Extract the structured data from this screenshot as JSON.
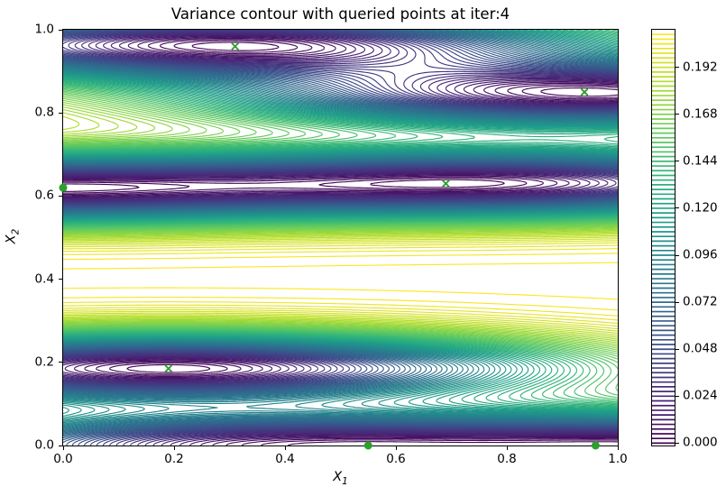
{
  "title": "Variance contour with queried points at iter:4",
  "axes": {
    "xlabel": {
      "base": "X",
      "sub": "1"
    },
    "ylabel": {
      "base": "X",
      "sub": "2"
    },
    "x_tick_labels": [
      "0.0",
      "0.2",
      "0.4",
      "0.6",
      "0.8",
      "1.0"
    ],
    "y_tick_labels": [
      "0.0",
      "0.2",
      "0.4",
      "0.6",
      "0.8",
      "1.0"
    ],
    "xlim": [
      0.0,
      1.0
    ],
    "ylim": [
      0.0,
      1.0
    ]
  },
  "colorbar": {
    "tick_labels": [
      "0.000",
      "0.024",
      "0.048",
      "0.072",
      "0.096",
      "0.120",
      "0.144",
      "0.168",
      "0.192"
    ],
    "tick_values": [
      0.0,
      0.024,
      0.048,
      0.072,
      0.096,
      0.12,
      0.144,
      0.168,
      0.192
    ],
    "vmin": 0.0,
    "vmax": 0.21
  },
  "chart_data": {
    "type": "contour",
    "title": "Variance contour with queried points at iter:4",
    "xlabel": "X_1",
    "ylabel": "X_2",
    "xlim": [
      0.0,
      1.0
    ],
    "ylim": [
      0.0,
      1.0
    ],
    "grid": false,
    "colormap": "viridis",
    "levels": {
      "start": 0.0,
      "step": 0.0024,
      "count": 88
    },
    "x_ticks": [
      0.0,
      0.2,
      0.4,
      0.6,
      0.8,
      1.0
    ],
    "y_ticks": [
      0.0,
      0.2,
      0.4,
      0.6,
      0.8,
      1.0
    ],
    "colorbar_ticks": [
      0.0,
      0.024,
      0.048,
      0.072,
      0.096,
      0.12,
      0.144,
      0.168,
      0.192
    ],
    "marker_color": "#2ca02c",
    "queried_points": {
      "crosses": [
        [
          0.31,
          0.96
        ],
        [
          0.94,
          0.85
        ],
        [
          0.69,
          0.63
        ],
        [
          0.19,
          0.185
        ]
      ],
      "dots": [
        [
          0.0,
          0.62
        ],
        [
          0.55,
          0.0
        ],
        [
          0.96,
          0.0
        ]
      ]
    },
    "variance_model": {
      "kind": "gp_posterior_variance",
      "kernel": "anisotropic_rbf",
      "signal_variance": 0.21,
      "lengthscales": [
        0.7,
        0.085
      ],
      "train_points": [
        [
          0.31,
          0.96
        ],
        [
          0.94,
          0.85
        ],
        [
          0.69,
          0.63
        ],
        [
          0.19,
          0.185
        ],
        [
          0.0,
          0.62
        ],
        [
          0.55,
          0.0
        ],
        [
          0.96,
          0.0
        ]
      ]
    }
  }
}
